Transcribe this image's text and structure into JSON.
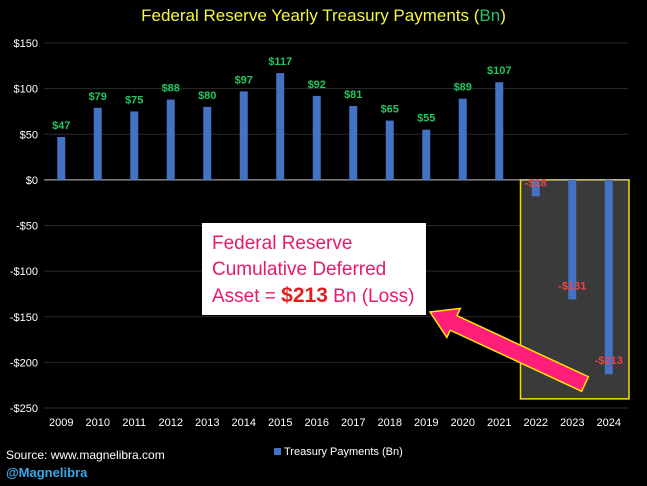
{
  "title": {
    "main": "Federal Reserve Yearly Treasury Payments (",
    "unit": "Bn",
    "close": ")"
  },
  "callout": {
    "line1": "Federal Reserve",
    "line2": "Cumulative Deferred",
    "line3_prefix": "Asset = ",
    "amount": "$213",
    "line3_suffix": " Bn (Loss)"
  },
  "source": "Source: www.magnelibra.com",
  "handle": "@Magnelibra",
  "legend_label": "Treasury Payments (Bn)",
  "colors": {
    "bar": "#4472c4",
    "positive_label": "#22c55e",
    "negative_label": "#ef4444",
    "highlight_border": "#f0e000",
    "arrow": "#ff1f7a"
  },
  "chart_data": {
    "type": "bar",
    "categories": [
      "2009",
      "2010",
      "2011",
      "2012",
      "2013",
      "2014",
      "2015",
      "2016",
      "2017",
      "2018",
      "2019",
      "2020",
      "2021",
      "2022",
      "2023",
      "2024"
    ],
    "series": [
      {
        "name": "Treasury Payments (Bn)",
        "values": [
          47,
          79,
          75,
          88,
          80,
          97,
          117,
          92,
          81,
          65,
          55,
          89,
          107,
          -18,
          -131,
          -213
        ]
      }
    ],
    "data_labels": [
      "$47",
      "$79",
      "$75",
      "$88",
      "$80",
      "$97",
      "$117",
      "$92",
      "$81",
      "$65",
      "$55",
      "$89",
      "$107",
      "-$18",
      "-$131",
      "-$213"
    ],
    "ylim": [
      -250,
      150
    ],
    "yticks": [
      150,
      100,
      50,
      0,
      -50,
      -100,
      -150,
      -200,
      -250
    ],
    "ytick_labels": [
      "$150",
      "$100",
      "$50",
      "$0",
      "-$50",
      "-$100",
      "-$150",
      "-$200",
      "-$250"
    ],
    "grid": true,
    "legend_position": "bottom",
    "highlighted_categories": [
      "2022",
      "2023",
      "2024"
    ]
  }
}
